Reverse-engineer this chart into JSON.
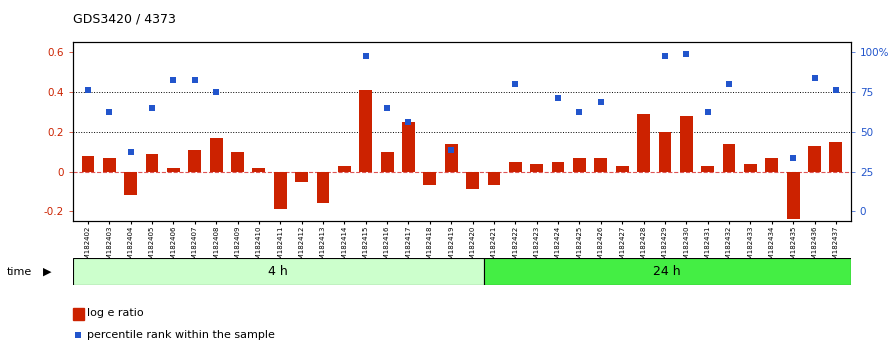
{
  "title": "GDS3420 / 4373",
  "categories": [
    "GSM182402",
    "GSM182403",
    "GSM182404",
    "GSM182405",
    "GSM182406",
    "GSM182407",
    "GSM182408",
    "GSM182409",
    "GSM182410",
    "GSM182411",
    "GSM182412",
    "GSM182413",
    "GSM182414",
    "GSM182415",
    "GSM182416",
    "GSM182417",
    "GSM182418",
    "GSM182419",
    "GSM182420",
    "GSM182421",
    "GSM182422",
    "GSM182423",
    "GSM182424",
    "GSM182425",
    "GSM182426",
    "GSM182427",
    "GSM182428",
    "GSM182429",
    "GSM182430",
    "GSM182431",
    "GSM182432",
    "GSM182433",
    "GSM182434",
    "GSM182435",
    "GSM182436",
    "GSM182437"
  ],
  "log_ratio": [
    0.08,
    0.07,
    -0.12,
    0.09,
    0.02,
    0.11,
    0.17,
    0.1,
    0.02,
    -0.19,
    -0.05,
    -0.16,
    0.03,
    0.41,
    0.1,
    0.25,
    -0.07,
    0.14,
    -0.09,
    -0.07,
    0.05,
    0.04,
    0.05,
    0.07,
    0.07,
    0.03,
    0.29,
    0.2,
    0.28,
    0.03,
    0.14,
    0.04,
    0.07,
    -0.24,
    0.13,
    0.15
  ],
  "percentile": [
    0.41,
    0.3,
    0.1,
    0.32,
    0.46,
    0.46,
    0.4,
    null,
    null,
    null,
    null,
    null,
    null,
    0.58,
    0.32,
    0.25,
    null,
    0.11,
    null,
    null,
    0.44,
    null,
    0.37,
    0.3,
    0.35,
    null,
    null,
    0.58,
    0.59,
    0.3,
    0.44,
    null,
    null,
    0.07,
    0.47,
    0.41
  ],
  "group_4h_count": 19,
  "group_24h_count": 17,
  "bar_color": "#cc2200",
  "dot_color": "#2255cc",
  "plot_bg_color": "#ffffff",
  "tick_bg_color": "#d8d8d8",
  "ylim_left": [
    -0.25,
    0.65
  ],
  "ylim_right": [
    -0.25,
    0.65
  ],
  "yticks_left": [
    -0.2,
    0.0,
    0.2,
    0.4,
    0.6
  ],
  "ytick_labels_left": [
    "-0.2",
    "0",
    "0.2",
    "0.4",
    "0.6"
  ],
  "ytick_labels_right": [
    "0",
    "25",
    "50",
    "75",
    "100%"
  ],
  "dotted_lines": [
    0.2,
    0.4
  ],
  "zero_line_color": "#dd5555",
  "time_label_4h": "4 h",
  "time_label_24h": "24 h",
  "color_4h": "#ccffcc",
  "color_24h": "#44ee44",
  "legend_bar_label": "log e ratio",
  "legend_dot_label": "percentile rank within the sample"
}
